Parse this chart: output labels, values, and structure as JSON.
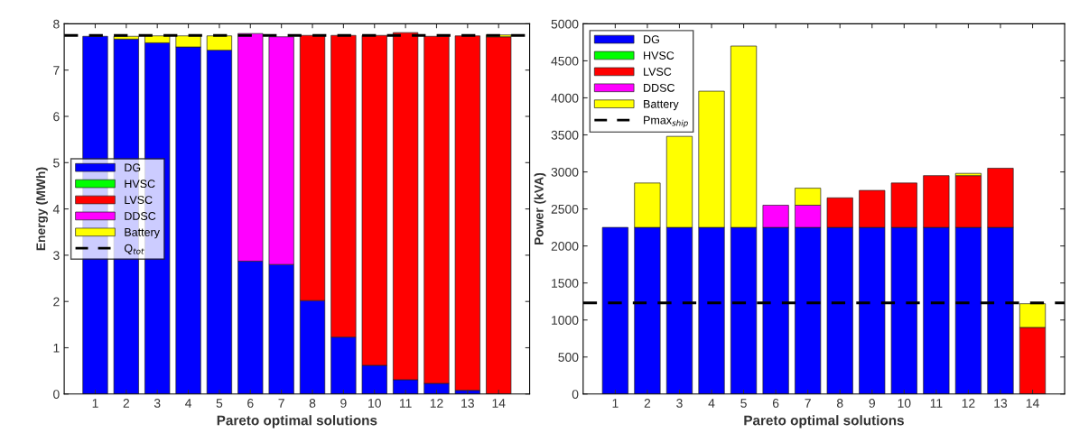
{
  "chart_data": [
    {
      "type": "bar",
      "stacked": true,
      "xlabel": "Pareto optimal solutions",
      "ylabel": "Energy (MWh)",
      "categories": [
        "1",
        "2",
        "3",
        "4",
        "5",
        "6",
        "7",
        "8",
        "9",
        "10",
        "11",
        "12",
        "13",
        "14"
      ],
      "ylim": [
        0,
        8
      ],
      "yticks": [
        0,
        1,
        2,
        3,
        4,
        5,
        6,
        7,
        8
      ],
      "legend": "left",
      "grid": false,
      "series": [
        {
          "name": "DG",
          "color": "#0000ff",
          "values": [
            7.73,
            7.67,
            7.59,
            7.5,
            7.43,
            2.87,
            2.8,
            2.02,
            1.23,
            0.62,
            0.31,
            0.23,
            0.08,
            0
          ]
        },
        {
          "name": "HVSC",
          "color": "#00ff00",
          "values": [
            0,
            0,
            0,
            0,
            0,
            0,
            0,
            0,
            0,
            0,
            0,
            0,
            0,
            0
          ]
        },
        {
          "name": "LVSC",
          "color": "#ff0000",
          "values": [
            0,
            0,
            0,
            0,
            0,
            0,
            0,
            5.73,
            6.52,
            7.13,
            7.5,
            7.5,
            7.66,
            7.72
          ]
        },
        {
          "name": "DDSC",
          "color": "#ff00ff",
          "values": [
            0,
            0,
            0,
            0,
            0,
            4.92,
            4.92,
            0,
            0,
            0,
            0,
            0,
            0,
            0
          ]
        },
        {
          "name": "Battery",
          "color": "#ffff00",
          "values": [
            0,
            0.06,
            0.15,
            0.24,
            0.31,
            0,
            0,
            0,
            0,
            0,
            0,
            0,
            0,
            0.04
          ]
        }
      ],
      "ref_lines": [
        {
          "axis": "y",
          "value": 7.75,
          "label": "Q$_{tot}$",
          "color": "#000000",
          "line_style": "dashed"
        }
      ]
    },
    {
      "type": "bar",
      "stacked": true,
      "xlabel": "Pareto optimal solutions",
      "ylabel": "Power (kVA)",
      "categories": [
        "1",
        "2",
        "3",
        "4",
        "5",
        "6",
        "7",
        "8",
        "9",
        "10",
        "11",
        "12",
        "13",
        "14"
      ],
      "ylim": [
        0,
        5000
      ],
      "yticks": [
        0,
        500,
        1000,
        1500,
        2000,
        2500,
        3000,
        3500,
        4000,
        4500,
        5000
      ],
      "legend": "top left",
      "grid": false,
      "series": [
        {
          "name": "DG",
          "color": "#0000ff",
          "values": [
            2250,
            2250,
            2250,
            2250,
            2250,
            2250,
            2250,
            2250,
            2250,
            2250,
            2250,
            2250,
            2250,
            0
          ]
        },
        {
          "name": "HVSC",
          "color": "#00ff00",
          "values": [
            0,
            0,
            0,
            0,
            0,
            0,
            0,
            0,
            0,
            0,
            0,
            0,
            0,
            0
          ]
        },
        {
          "name": "LVSC",
          "color": "#ff0000",
          "values": [
            0,
            0,
            0,
            0,
            0,
            0,
            0,
            400,
            500,
            600,
            700,
            700,
            800,
            900
          ]
        },
        {
          "name": "DDSC",
          "color": "#ff00ff",
          "values": [
            0,
            0,
            0,
            0,
            0,
            300,
            300,
            0,
            0,
            0,
            0,
            0,
            0,
            0
          ]
        },
        {
          "name": "Battery",
          "color": "#ffff00",
          "values": [
            0,
            600,
            1230,
            1840,
            2450,
            0,
            230,
            0,
            0,
            0,
            0,
            30,
            0,
            320
          ]
        }
      ],
      "ref_lines": [
        {
          "axis": "y",
          "value": 1230,
          "label": "Pmax$_{ship}$",
          "color": "#000000",
          "line_style": "dashed"
        }
      ]
    }
  ]
}
